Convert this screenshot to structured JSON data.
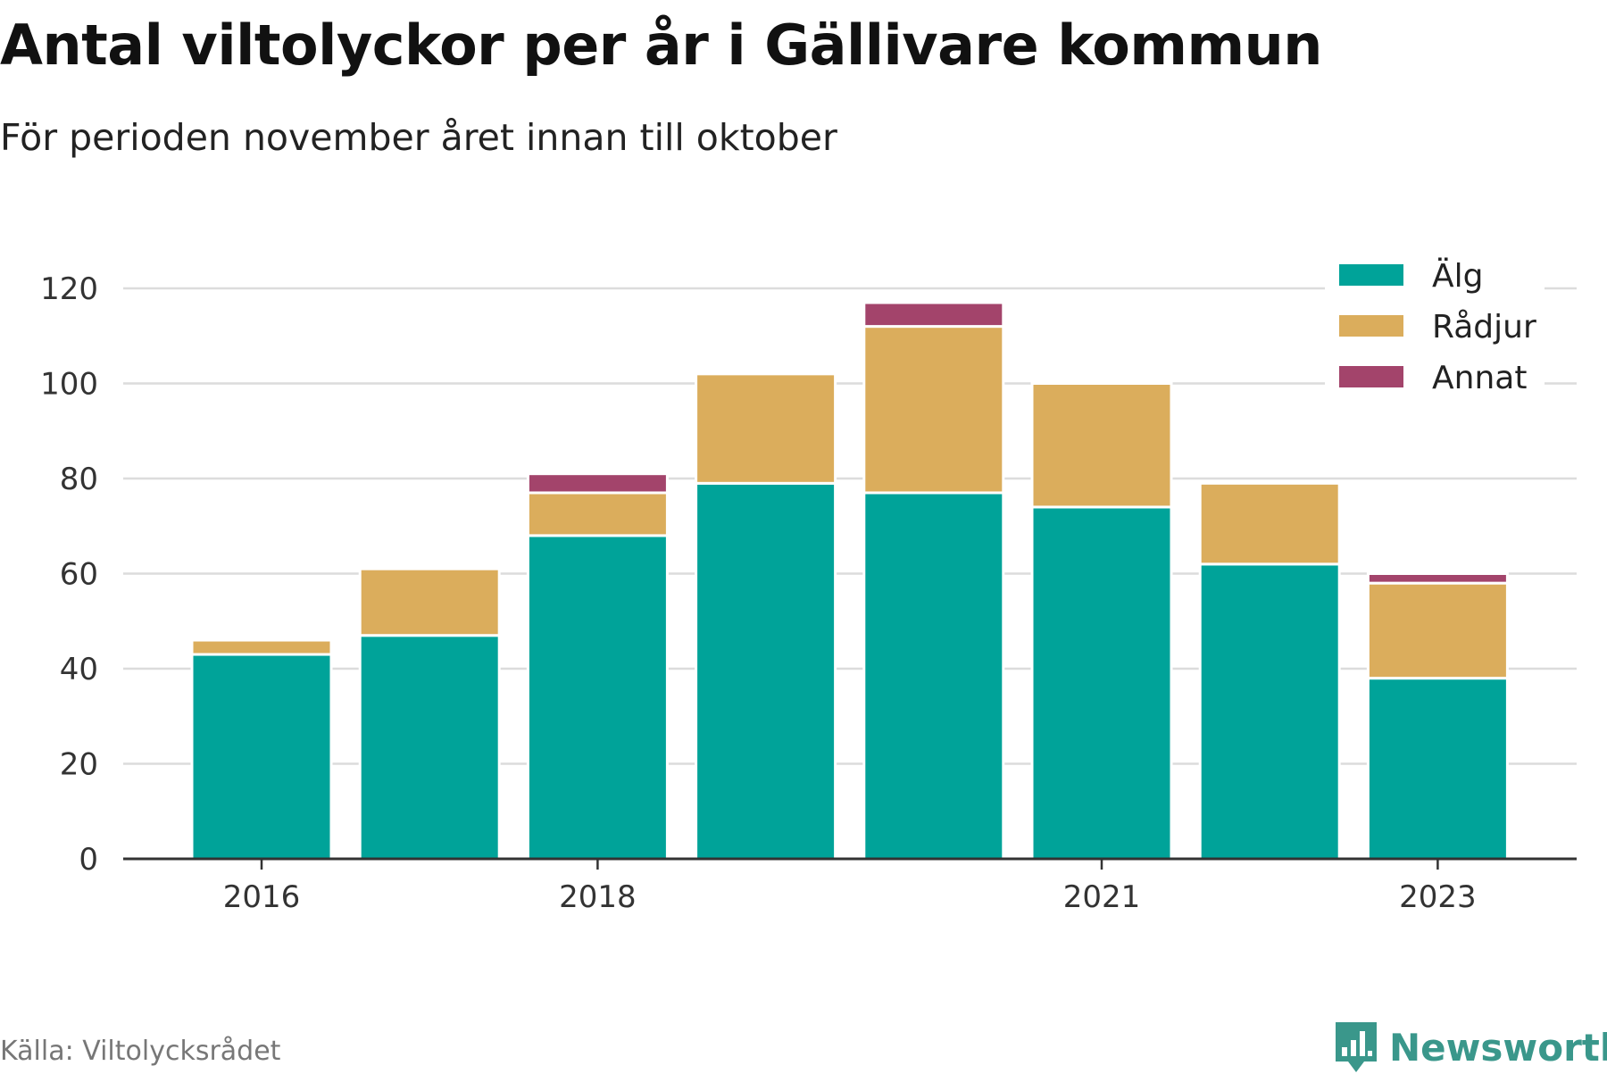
{
  "title": "Antal viltolyckor per år i Gällivare kommun",
  "subtitle": "För perioden november året innan till oktober",
  "source": "Källa: Viltolycksrådet",
  "brand": "Newsworthy",
  "chart_data": {
    "type": "bar",
    "stacked": true,
    "x": [
      2016,
      2017,
      2018,
      2019,
      2020,
      2021,
      2022,
      2023
    ],
    "x_tick_labels": [
      "2016",
      "2018",
      "2021",
      "2023"
    ],
    "series": [
      {
        "name": "Älg",
        "color": "#00a399",
        "values": [
          43,
          47,
          68,
          79,
          77,
          74,
          62,
          38
        ]
      },
      {
        "name": "Rådjur",
        "color": "#dbad5c",
        "values": [
          3,
          14,
          9,
          23,
          35,
          26,
          17,
          20
        ]
      },
      {
        "name": "Annat",
        "color": "#a3446b",
        "values": [
          0,
          0,
          4,
          0,
          5,
          0,
          0,
          2
        ]
      }
    ],
    "ylim": [
      0,
      120
    ],
    "y_ticks": [
      0,
      20,
      40,
      60,
      80,
      100,
      120
    ],
    "grid": true,
    "legend_position": "top-right"
  }
}
